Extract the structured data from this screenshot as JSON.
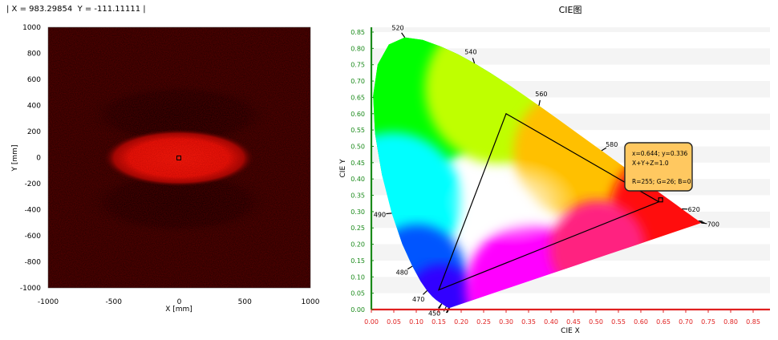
{
  "readout": {
    "text": "| X = 983.29854  Y = -111.11111 |"
  },
  "chart_data": [
    {
      "type": "heatmap",
      "title": "",
      "xlabel": "X [mm]",
      "ylabel": "Y [mm]",
      "xlim": [
        -1000,
        1000
      ],
      "ylim": [
        -1000,
        1000
      ],
      "xticks": [
        -1000,
        -500,
        0,
        500,
        1000
      ],
      "yticks": [
        1000,
        800,
        600,
        400,
        200,
        0,
        -200,
        -400,
        -600,
        -800,
        -1000
      ],
      "hot_spot": {
        "x": 0,
        "y": 0,
        "rx": 500,
        "ry": 180
      },
      "marker": {
        "x": 0,
        "y": 0
      },
      "colors": {
        "background": "#1a0000",
        "hot": "#ff1a0a",
        "dark_band": "#050000"
      }
    },
    {
      "type": "scatter",
      "title": "CIE图",
      "xlabel": "CIE X",
      "ylabel": "CIE Y",
      "xlim": [
        0,
        0.85
      ],
      "ylim": [
        0,
        0.85
      ],
      "xticks": [
        "0.00",
        "0.05",
        "0.10",
        "0.15",
        "0.20",
        "0.25",
        "0.30",
        "0.35",
        "0.40",
        "0.45",
        "0.50",
        "0.55",
        "0.60",
        "0.65",
        "0.70",
        "0.75",
        "0.80",
        "0.85"
      ],
      "yticks": [
        "0.85",
        "0.80",
        "0.75",
        "0.70",
        "0.65",
        "0.60",
        "0.55",
        "0.50",
        "0.45",
        "0.40",
        "0.35",
        "0.30",
        "0.25",
        "0.20",
        "0.15",
        "0.10",
        "0.05",
        "0.00"
      ],
      "spectral_locus": [
        [
          0.1741,
          0.005
        ],
        [
          0.1738,
          0.0049
        ],
        [
          0.1736,
          0.0049
        ],
        [
          0.173,
          0.0048
        ],
        [
          0.1721,
          0.0048
        ],
        [
          0.1703,
          0.0058
        ],
        [
          0.1666,
          0.0089
        ],
        [
          0.1611,
          0.0138
        ],
        [
          0.1566,
          0.0177
        ],
        [
          0.151,
          0.0227
        ],
        [
          0.144,
          0.0297
        ],
        [
          0.1355,
          0.0399
        ],
        [
          0.1241,
          0.0578
        ],
        [
          0.1096,
          0.0868
        ],
        [
          0.0913,
          0.1327
        ],
        [
          0.0687,
          0.2007
        ],
        [
          0.0454,
          0.295
        ],
        [
          0.0235,
          0.4127
        ],
        [
          0.0082,
          0.5384
        ],
        [
          0.0039,
          0.6548
        ],
        [
          0.0139,
          0.7502
        ],
        [
          0.0389,
          0.812
        ],
        [
          0.0743,
          0.8338
        ],
        [
          0.1142,
          0.8262
        ],
        [
          0.1547,
          0.8059
        ],
        [
          0.1929,
          0.7816
        ],
        [
          0.2296,
          0.7543
        ],
        [
          0.2658,
          0.7243
        ],
        [
          0.3016,
          0.6923
        ],
        [
          0.3373,
          0.6589
        ],
        [
          0.3731,
          0.6245
        ],
        [
          0.4087,
          0.5896
        ],
        [
          0.4441,
          0.5547
        ],
        [
          0.4788,
          0.5202
        ],
        [
          0.5125,
          0.4866
        ],
        [
          0.5448,
          0.4544
        ],
        [
          0.5752,
          0.4242
        ],
        [
          0.6029,
          0.3965
        ],
        [
          0.627,
          0.3725
        ],
        [
          0.6482,
          0.3514
        ],
        [
          0.6658,
          0.334
        ],
        [
          0.6801,
          0.3197
        ],
        [
          0.6915,
          0.3083
        ],
        [
          0.7006,
          0.2993
        ],
        [
          0.7079,
          0.292
        ],
        [
          0.714,
          0.2859
        ],
        [
          0.719,
          0.2809
        ],
        [
          0.723,
          0.277
        ],
        [
          0.726,
          0.274
        ],
        [
          0.7283,
          0.2717
        ],
        [
          0.73,
          0.27
        ],
        [
          0.7311,
          0.2689
        ],
        [
          0.732,
          0.268
        ],
        [
          0.7327,
          0.2673
        ],
        [
          0.7334,
          0.2666
        ],
        [
          0.734,
          0.266
        ],
        [
          0.7344,
          0.2656
        ],
        [
          0.7346,
          0.2654
        ],
        [
          0.7347,
          0.2653
        ]
      ],
      "wavelength_labels": [
        {
          "label": "450",
          "x": 0.1566,
          "y": 0.0177
        },
        {
          "label": "470",
          "x": 0.1241,
          "y": 0.0578
        },
        {
          "label": "480",
          "x": 0.0913,
          "y": 0.1327
        },
        {
          "label": "490",
          "x": 0.0454,
          "y": 0.295
        },
        {
          "label": "520",
          "x": 0.0743,
          "y": 0.8338
        },
        {
          "label": "540",
          "x": 0.2296,
          "y": 0.7543
        },
        {
          "label": "560",
          "x": 0.3731,
          "y": 0.6245
        },
        {
          "label": "580",
          "x": 0.5125,
          "y": 0.4866
        },
        {
          "label": "620",
          "x": 0.6915,
          "y": 0.3083
        },
        {
          "label": "700",
          "x": 0.7347,
          "y": 0.2653
        }
      ],
      "gamut_triangle": [
        [
          0.3,
          0.6
        ],
        [
          0.64,
          0.33
        ],
        [
          0.15,
          0.06
        ]
      ],
      "selected_point": {
        "x": 0.644,
        "y": 0.336
      },
      "tooltip_lines": [
        "x=0.644; y=0.336",
        "X+Y+Z=1.0",
        "",
        "R=255; G=26; B=0"
      ],
      "colors": {
        "x_axis": "#e02020",
        "y_axis": "#1a8a1a",
        "band": "#f4f4f4",
        "tooltip_bg": "#ffc860"
      }
    }
  ]
}
